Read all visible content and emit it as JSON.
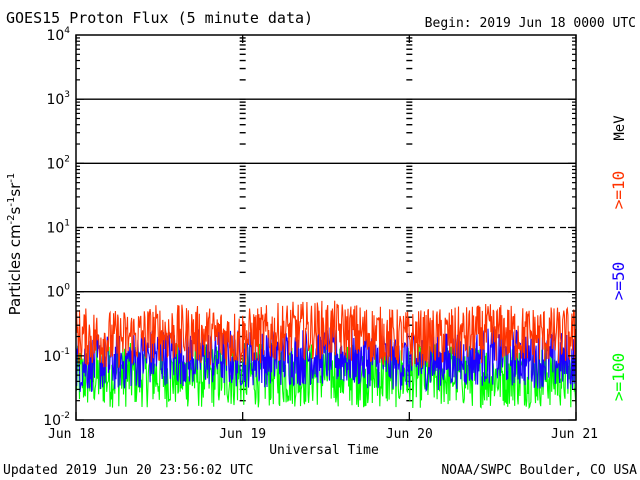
{
  "header": {
    "title": "GOES15 Proton Flux (5 minute data)",
    "begin": "Begin: 2019 Jun 18 0000 UTC"
  },
  "footer": {
    "updated": "Updated 2019 Jun 20 23:56:02 UTC",
    "credit": "NOAA/SWPC Boulder, CO USA"
  },
  "colors": {
    "ge10": "#ff3300",
    "ge50": "#1a00ff",
    "ge100": "#00ff00",
    "frame": "#000000"
  },
  "chart_data": {
    "type": "line",
    "title": "GOES15 Proton Flux (5 minute data)",
    "xlabel": "Universal Time",
    "ylabel_parts": {
      "base": "Particles cm",
      "e1": "-2",
      "s": "s",
      "e2": "-1",
      "sr": "sr",
      "e3": "-1"
    },
    "yscale": "log",
    "ylim": [
      0.01,
      10000
    ],
    "y_ticks": [
      {
        "value": 10000,
        "base": "10",
        "exp": "4"
      },
      {
        "value": 1000,
        "base": "10",
        "exp": "3"
      },
      {
        "value": 100,
        "base": "10",
        "exp": "2"
      },
      {
        "value": 10,
        "base": "10",
        "exp": "1"
      },
      {
        "value": 1,
        "base": "10",
        "exp": "0"
      },
      {
        "value": 0.1,
        "base": "10",
        "exp": "-1"
      },
      {
        "value": 0.01,
        "base": "10",
        "exp": "-2"
      }
    ],
    "x_ticks": [
      {
        "value": 0,
        "label": "Jun 18"
      },
      {
        "value": 1,
        "label": "Jun 19"
      },
      {
        "value": 2,
        "label": "Jun 20"
      },
      {
        "value": 3,
        "label": "Jun 21"
      }
    ],
    "xlim": [
      0,
      3
    ],
    "threshold_lines": [
      {
        "value": 1000,
        "style": "solid"
      },
      {
        "value": 100,
        "style": "solid"
      },
      {
        "value": 10,
        "style": "dashed"
      },
      {
        "value": 1,
        "style": "solid"
      }
    ],
    "legend_unit": "MeV",
    "series": [
      {
        "name": ">=10",
        "color": "#ff3300",
        "x": [
          0,
          0.25,
          0.5,
          0.75,
          1,
          1.25,
          1.5,
          1.75,
          2,
          2.25,
          2.5,
          2.75,
          3
        ],
        "values": [
          0.2,
          0.18,
          0.23,
          0.21,
          0.19,
          0.24,
          0.26,
          0.22,
          0.18,
          0.2,
          0.23,
          0.21,
          0.2
        ],
        "sigma": 0.2
      },
      {
        "name": ">=50",
        "color": "#1a00ff",
        "x": [
          0,
          0.25,
          0.5,
          0.75,
          1,
          1.25,
          1.5,
          1.75,
          2,
          2.25,
          2.5,
          2.75,
          3
        ],
        "values": [
          0.075,
          0.08,
          0.1,
          0.095,
          0.09,
          0.095,
          0.1,
          0.09,
          0.08,
          0.085,
          0.1,
          0.09,
          0.08
        ],
        "sigma": 0.2
      },
      {
        "name": ">=100",
        "color": "#00ff00",
        "x": [
          0,
          0.25,
          0.5,
          0.75,
          1,
          1.25,
          1.5,
          1.75,
          2,
          2.25,
          2.5,
          2.75,
          3
        ],
        "values": [
          0.045,
          0.05,
          0.05,
          0.048,
          0.05,
          0.05,
          0.052,
          0.05,
          0.048,
          0.05,
          0.05,
          0.05,
          0.048
        ],
        "sigma": 0.22
      }
    ]
  }
}
